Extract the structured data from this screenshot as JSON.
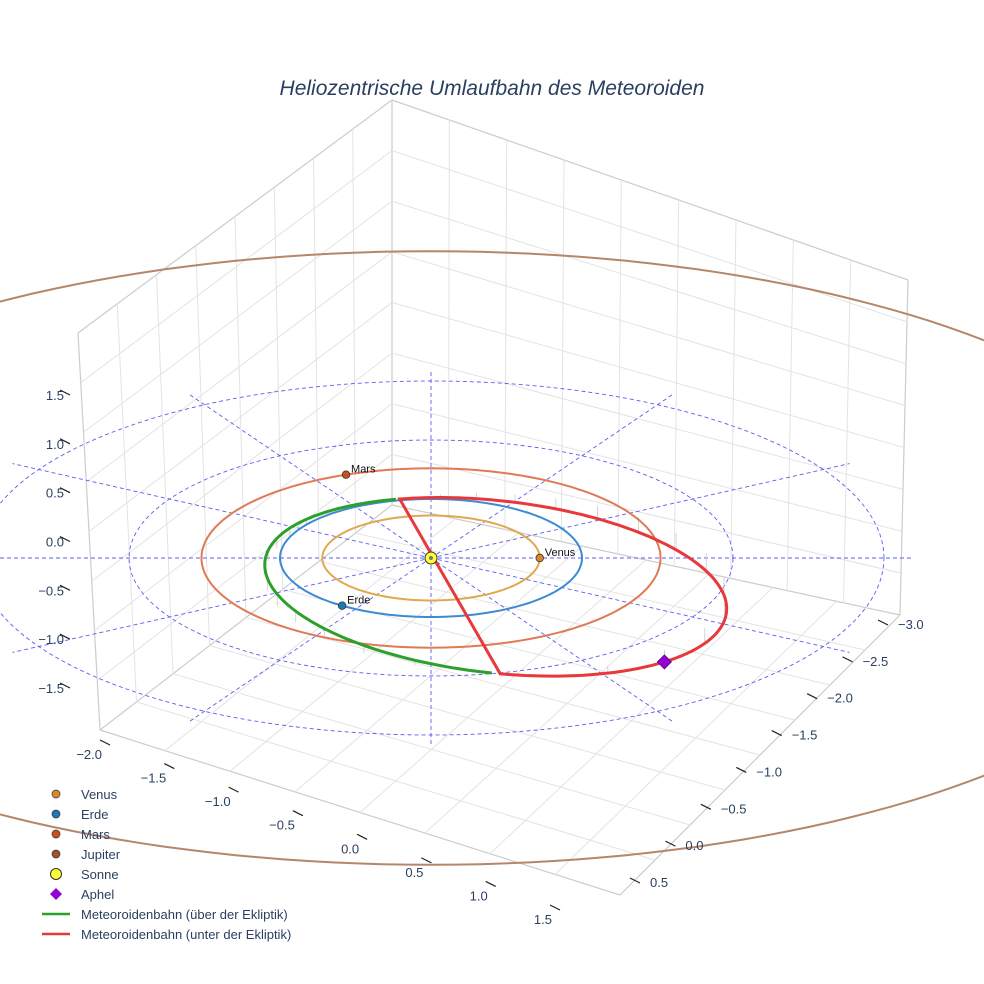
{
  "chart_data": {
    "type": "scatter3d",
    "title": "Heliozentrische Umlaufbahn des Meteoroiden",
    "x_axis_ticks": [
      "−3.0",
      "−2.5",
      "−2.0",
      "−1.5",
      "−1.0",
      "−0.5",
      "0.0",
      "0.5"
    ],
    "y_axis_ticks": [
      "−2.0",
      "−1.5",
      "−1.0",
      "−0.5",
      "0.0",
      "0.5",
      "1.0",
      "1.5"
    ],
    "z_axis_ticks": [
      "1.5",
      "1.0",
      "0.5",
      "0.0",
      "−0.5",
      "−1.0",
      "−1.5"
    ],
    "reference_circles_au": [
      1,
      2,
      3
    ],
    "planets": [
      {
        "name": "Venus",
        "a_au": 0.72,
        "color": "#e0a84f",
        "point_color": "#d9882b",
        "label": "Venus"
      },
      {
        "name": "Erde",
        "a_au": 1.0,
        "color": "#3f8ad3",
        "point_color": "#1f77b4",
        "label": "Erde"
      },
      {
        "name": "Mars",
        "a_au": 1.52,
        "color": "#e07a55",
        "point_color": "#c8501e",
        "label": "Mars"
      },
      {
        "name": "Jupiter",
        "a_au": 5.2,
        "color": "#b5876a",
        "point_color": "#a0522d"
      }
    ],
    "sun": {
      "name": "Sonne",
      "color": "#ffff33"
    },
    "aphel": {
      "name": "Aphel",
      "color": "#9400d3"
    },
    "meteoroid_orbit": {
      "perihel_au": 0.98,
      "aphel_au": 2.2,
      "above_color": "#2ca02c",
      "below_color": "#e8383b",
      "above_name": "Meteoroidenbahn (über der Ekliptik)",
      "below_name": "Meteoroidenbahn (unter der Ekliptik)"
    }
  },
  "legend": {
    "items": [
      {
        "label": "Venus",
        "marker": "dot",
        "color": "#d9882b"
      },
      {
        "label": "Erde",
        "marker": "dot",
        "color": "#1f77b4"
      },
      {
        "label": "Mars",
        "marker": "dot",
        "color": "#c8501e"
      },
      {
        "label": "Jupiter",
        "marker": "dot",
        "color": "#a0522d"
      },
      {
        "label": "Sonne",
        "marker": "sun",
        "color": "#ffff33"
      },
      {
        "label": "Aphel",
        "marker": "diamond",
        "color": "#9400d3"
      },
      {
        "label": "Meteoroidenbahn (über der Ekliptik)",
        "marker": "line",
        "color": "#2ca02c"
      },
      {
        "label": "Meteoroidenbahn (unter der Ekliptik)",
        "marker": "line",
        "color": "#e8383b"
      }
    ]
  }
}
